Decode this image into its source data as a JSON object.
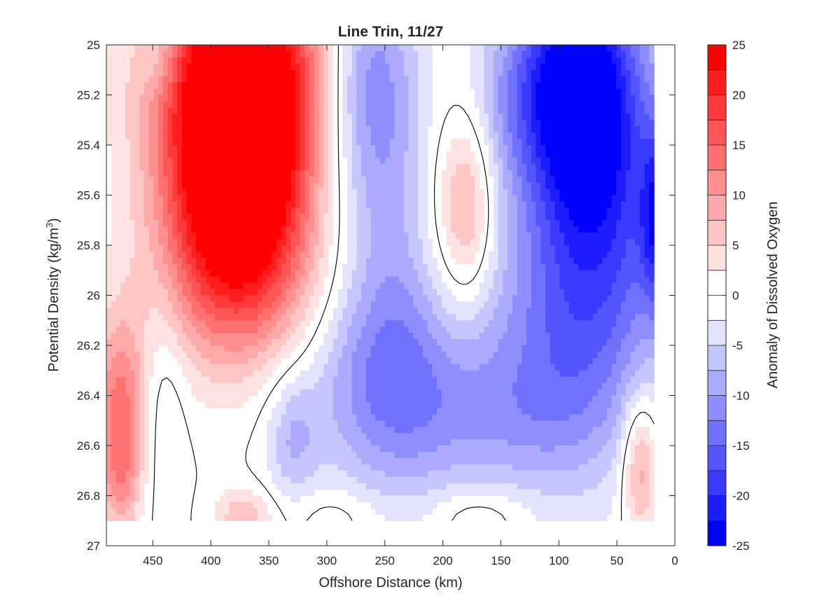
{
  "chart_data": {
    "type": "contour",
    "title": "Line Trin, 11/27",
    "xlabel": "Offshore Distance (km)",
    "ylabel_main": "Potential Density (kg/m",
    "ylabel_sup": "3",
    "ylabel_close": ")",
    "colorbar_label": "Anomaly of Dissolved Oxygen",
    "x_reversed": true,
    "y_reversed": true,
    "xlim": [
      490,
      0
    ],
    "ylim": [
      25,
      27
    ],
    "data_extent_y": [
      25,
      26.9
    ],
    "x_ticks": [
      {
        "value": 450,
        "label": "450"
      },
      {
        "value": 400,
        "label": "400"
      },
      {
        "value": 350,
        "label": "350"
      },
      {
        "value": 300,
        "label": "300"
      },
      {
        "value": 250,
        "label": "250"
      },
      {
        "value": 200,
        "label": "200"
      },
      {
        "value": 150,
        "label": "150"
      },
      {
        "value": 100,
        "label": "100"
      },
      {
        "value": 50,
        "label": "50"
      },
      {
        "value": 0,
        "label": "0"
      }
    ],
    "y_ticks": [
      {
        "value": 25,
        "label": "25"
      },
      {
        "value": 25.2,
        "label": "25.2"
      },
      {
        "value": 25.4,
        "label": "25.4"
      },
      {
        "value": 25.6,
        "label": "25.6"
      },
      {
        "value": 25.8,
        "label": "25.8"
      },
      {
        "value": 26,
        "label": "26"
      },
      {
        "value": 26.2,
        "label": "26.2"
      },
      {
        "value": 26.4,
        "label": "26.4"
      },
      {
        "value": 26.6,
        "label": "26.6"
      },
      {
        "value": 26.8,
        "label": "26.8"
      },
      {
        "value": 27,
        "label": "27"
      }
    ],
    "colorbar": {
      "range": [
        -25,
        25
      ],
      "tick_labels": [
        {
          "value": 25,
          "label": "25"
        },
        {
          "value": 20,
          "label": "20"
        },
        {
          "value": 15,
          "label": "15"
        },
        {
          "value": 10,
          "label": "10"
        },
        {
          "value": 5,
          "label": "5"
        },
        {
          "value": 0,
          "label": "0"
        },
        {
          "value": -5,
          "label": "-5"
        },
        {
          "value": -10,
          "label": "-10"
        },
        {
          "value": -15,
          "label": "-15"
        },
        {
          "value": -20,
          "label": "-20"
        },
        {
          "value": -25,
          "label": "-25"
        }
      ],
      "bands": [
        {
          "lo": 22.5,
          "hi": 25,
          "color": "#ff0000"
        },
        {
          "lo": 20,
          "hi": 22.5,
          "color": "#ff1c1c"
        },
        {
          "lo": 17.5,
          "hi": 20,
          "color": "#ff3939"
        },
        {
          "lo": 15,
          "hi": 17.5,
          "color": "#ff5555"
        },
        {
          "lo": 12.5,
          "hi": 15,
          "color": "#ff7171"
        },
        {
          "lo": 10,
          "hi": 12.5,
          "color": "#ff8e8e"
        },
        {
          "lo": 7.5,
          "hi": 10,
          "color": "#ffaaaa"
        },
        {
          "lo": 5,
          "hi": 7.5,
          "color": "#ffc6c6"
        },
        {
          "lo": 2.5,
          "hi": 5,
          "color": "#ffe3e3"
        },
        {
          "lo": 0,
          "hi": 2.5,
          "color": "#ffffff"
        },
        {
          "lo": -2.5,
          "hi": 0,
          "color": "#ffffff"
        },
        {
          "lo": -5,
          "hi": -2.5,
          "color": "#e3e3ff"
        },
        {
          "lo": -7.5,
          "hi": -5,
          "color": "#c6c6ff"
        },
        {
          "lo": -10,
          "hi": -7.5,
          "color": "#aaaaff"
        },
        {
          "lo": -12.5,
          "hi": -10,
          "color": "#8e8eff"
        },
        {
          "lo": -15,
          "hi": -12.5,
          "color": "#7171ff"
        },
        {
          "lo": -17.5,
          "hi": -15,
          "color": "#5555ff"
        },
        {
          "lo": -20,
          "hi": -17.5,
          "color": "#3939ff"
        },
        {
          "lo": -22.5,
          "hi": -20,
          "color": "#1c1cff"
        },
        {
          "lo": -25,
          "hi": -22.5,
          "color": "#0000ff"
        }
      ]
    },
    "anomaly_features": [
      {
        "x": 378,
        "y": 25.42,
        "sx": 42,
        "sy": 0.42,
        "amp": 34
      },
      {
        "x": 372,
        "y": 25.95,
        "sx": 60,
        "sy": 0.28,
        "amp": 8
      },
      {
        "x": 355,
        "y": 25.05,
        "sx": 70,
        "sy": 0.35,
        "amp": 12
      },
      {
        "x": 478,
        "y": 26.45,
        "sx": 16,
        "sy": 0.26,
        "amp": 13
      },
      {
        "x": 478,
        "y": 26.75,
        "sx": 12,
        "sy": 0.15,
        "amp": 6
      },
      {
        "x": 178,
        "y": 25.65,
        "sx": 16,
        "sy": 0.26,
        "amp": 9
      },
      {
        "x": 30,
        "y": 26.68,
        "sx": 11,
        "sy": 0.2,
        "amp": 11
      },
      {
        "x": 372,
        "y": 26.88,
        "sx": 18,
        "sy": 0.08,
        "amp": 7
      },
      {
        "x": 170,
        "y": 26.88,
        "sx": 30,
        "sy": 0.08,
        "amp": 4
      },
      {
        "x": 290,
        "y": 26.88,
        "sx": 30,
        "sy": 0.08,
        "amp": 3
      },
      {
        "x": 85,
        "y": 25.15,
        "sx": 34,
        "sy": 0.35,
        "amp": -22
      },
      {
        "x": 55,
        "y": 25.6,
        "sx": 42,
        "sy": 0.55,
        "amp": -13
      },
      {
        "x": 15,
        "y": 25.7,
        "sx": 10,
        "sy": 0.25,
        "amp": -14
      },
      {
        "x": 100,
        "y": 26.1,
        "sx": 48,
        "sy": 0.45,
        "amp": -10
      },
      {
        "x": 265,
        "y": 25.1,
        "sx": 30,
        "sy": 0.35,
        "amp": -13
      },
      {
        "x": 240,
        "y": 25.9,
        "sx": 40,
        "sy": 0.6,
        "amp": -8
      },
      {
        "x": 250,
        "y": 26.35,
        "sx": 60,
        "sy": 0.3,
        "amp": -8
      },
      {
        "x": 150,
        "y": 26.5,
        "sx": 60,
        "sy": 0.22,
        "amp": -5
      },
      {
        "x": 140,
        "y": 25.2,
        "sx": 30,
        "sy": 0.25,
        "amp": -6
      },
      {
        "x": 330,
        "y": 26.58,
        "sx": 16,
        "sy": 0.18,
        "amp": -6
      },
      {
        "x": 440,
        "y": 26.4,
        "sx": 14,
        "sy": 0.35,
        "amp": -3.5
      },
      {
        "x": 445,
        "y": 25.05,
        "sx": 12,
        "sy": 0.1,
        "amp": -4
      },
      {
        "x": 200,
        "y": 25.7,
        "sx": 22,
        "sy": 0.35,
        "amp": 5
      }
    ]
  }
}
